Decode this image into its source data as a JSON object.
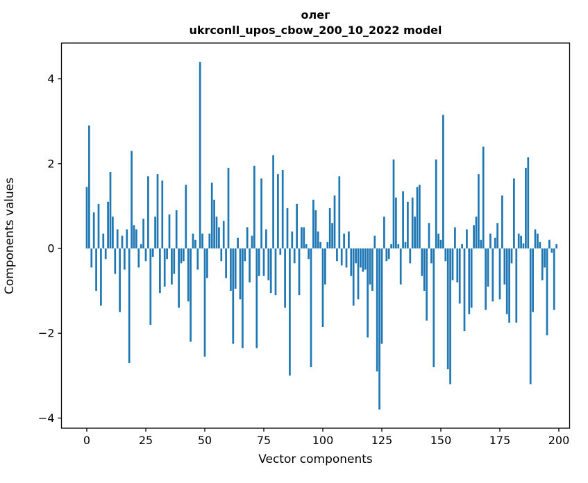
{
  "chart_data": {
    "type": "bar",
    "title_line1": "олег",
    "title_line2": "ukrconll_upos_cbow_200_10_2022 model",
    "xlabel": "Vector components",
    "ylabel": "Components values",
    "x_ticks": [
      0,
      25,
      50,
      75,
      100,
      125,
      150,
      175,
      200
    ],
    "y_ticks": [
      -4,
      -2,
      0,
      2,
      4
    ],
    "xlim": [
      -10.9,
      204.4
    ],
    "ylim": [
      -4.24,
      4.84
    ],
    "grid": false,
    "legend": "none",
    "bar_color": "#1f77b4",
    "n_components": 200,
    "values": [
      1.45,
      2.9,
      -0.45,
      0.85,
      -1.0,
      1.05,
      -1.35,
      0.35,
      -0.25,
      1.1,
      1.8,
      0.75,
      -0.6,
      0.45,
      -1.5,
      0.3,
      -0.5,
      0.45,
      -2.7,
      2.3,
      0.55,
      0.45,
      -0.45,
      0.1,
      0.7,
      -0.3,
      1.7,
      -1.8,
      -0.2,
      0.75,
      1.75,
      -1.05,
      1.6,
      -0.9,
      -0.25,
      0.8,
      -0.85,
      -0.6,
      0.9,
      -1.4,
      -0.35,
      -0.3,
      1.5,
      -1.25,
      -2.2,
      0.35,
      0.2,
      -0.5,
      4.4,
      0.35,
      -2.55,
      -0.7,
      0.35,
      1.55,
      1.15,
      0.75,
      0.5,
      -0.3,
      0.65,
      -0.7,
      1.9,
      -1.0,
      -2.25,
      -0.95,
      0.25,
      -1.2,
      -2.35,
      -0.3,
      0.5,
      -0.8,
      0.3,
      1.95,
      -2.35,
      -0.65,
      1.65,
      -0.65,
      0.45,
      -0.75,
      -1.05,
      2.2,
      -1.1,
      1.75,
      -0.15,
      1.85,
      -1.4,
      0.95,
      -3.0,
      0.4,
      -0.35,
      1.05,
      -1.1,
      0.5,
      0.5,
      0.1,
      -0.25,
      -2.8,
      1.15,
      0.9,
      0.4,
      0.15,
      -1.85,
      -0.85,
      0.15,
      0.95,
      0.6,
      1.25,
      -0.3,
      1.7,
      -0.4,
      0.35,
      -0.45,
      0.4,
      -0.65,
      -1.35,
      -0.35,
      -1.2,
      -0.45,
      -0.55,
      -0.5,
      -2.1,
      -0.85,
      -1.0,
      0.3,
      -2.9,
      -3.8,
      -2.25,
      0.75,
      -0.3,
      -0.25,
      0.1,
      2.1,
      1.2,
      0.1,
      -0.85,
      1.35,
      0.15,
      1.1,
      -0.35,
      1.2,
      0.75,
      1.45,
      1.5,
      -0.65,
      -1.0,
      -1.7,
      0.6,
      -0.35,
      -2.8,
      2.1,
      0.35,
      0.2,
      3.15,
      -0.3,
      -2.85,
      -3.2,
      -0.75,
      0.5,
      -0.8,
      -1.3,
      0.1,
      -1.95,
      0.45,
      -1.55,
      -1.4,
      0.55,
      0.75,
      1.75,
      0.2,
      2.4,
      -1.45,
      -0.9,
      0.35,
      -1.25,
      0.25,
      0.6,
      -1.2,
      1.25,
      -0.85,
      -1.55,
      -1.75,
      -0.35,
      1.65,
      -1.75,
      0.35,
      0.3,
      0.12,
      1.9,
      2.15,
      -3.2,
      -1.5,
      0.45,
      0.35,
      0.15,
      -0.75,
      -0.45,
      -2.05,
      0.2,
      -0.1,
      -1.45,
      0.1
    ]
  }
}
